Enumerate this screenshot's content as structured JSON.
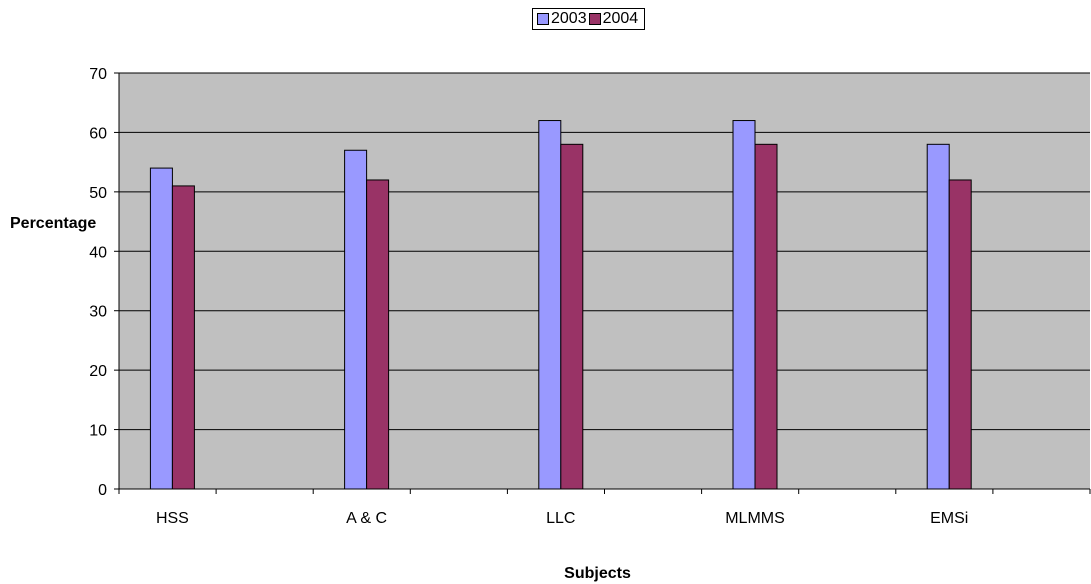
{
  "chart_data": {
    "type": "bar",
    "categories": [
      "HSS",
      "A & C",
      "LLC",
      "MLMMS",
      "EMSi"
    ],
    "series": [
      {
        "name": "2003",
        "values": [
          54,
          57,
          62,
          62,
          58
        ],
        "color": "#9999ff"
      },
      {
        "name": "2004",
        "values": [
          51,
          52,
          58,
          58,
          52
        ],
        "color": "#993366"
      }
    ],
    "xlabel": "Subjects",
    "ylabel": "Percentage",
    "ylim": [
      0,
      70
    ],
    "yticks": [
      0,
      10,
      20,
      30,
      40,
      50,
      60,
      70
    ],
    "grid": true,
    "legend_position": "top",
    "plot_background": "#c0c0c0"
  }
}
